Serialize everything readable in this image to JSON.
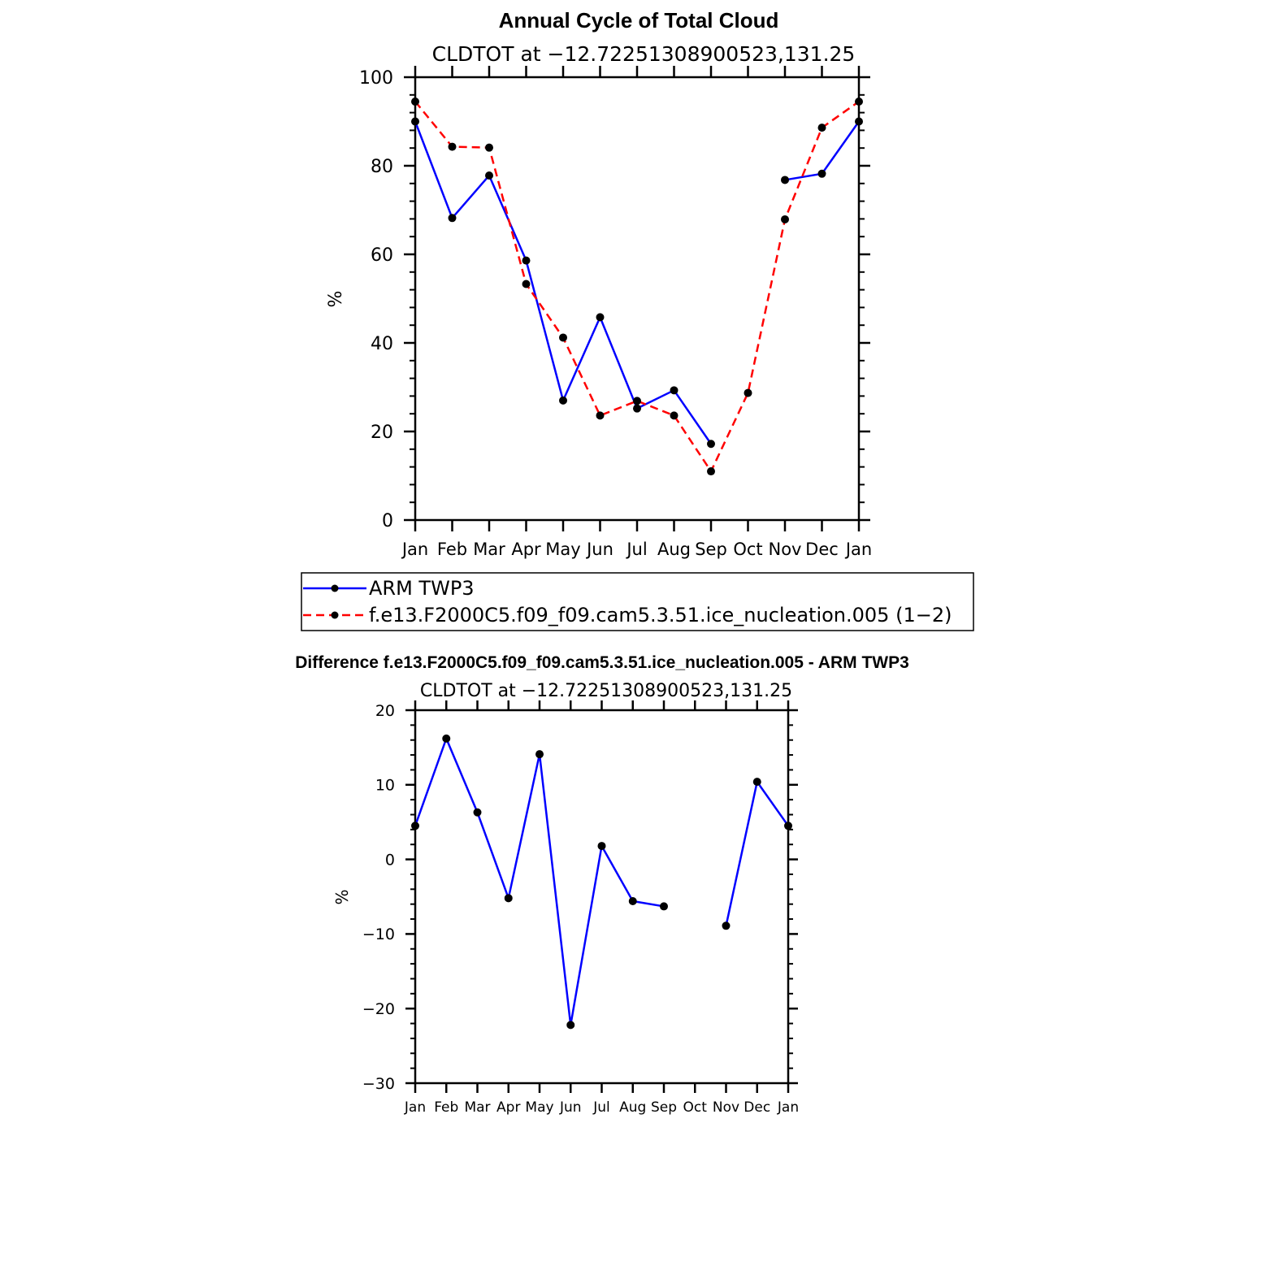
{
  "chart_data": [
    {
      "type": "line",
      "title": "Annual Cycle of Total Cloud",
      "subtitle": "CLDTOT at −12.72251308900523,131.25",
      "ylabel": "%",
      "categories": [
        "Jan",
        "Feb",
        "Mar",
        "Apr",
        "May",
        "Jun",
        "Jul",
        "Aug",
        "Sep",
        "Oct",
        "Nov",
        "Dec",
        "Jan"
      ],
      "ylim": [
        0,
        100
      ],
      "yticks": [
        0,
        20,
        40,
        60,
        80,
        100
      ],
      "ytick_labels": [
        "0",
        "20",
        "40",
        "60",
        "80",
        "100"
      ],
      "series": [
        {
          "name": "ARM TWP3",
          "color": "#0000ff",
          "dash": "solid",
          "values": [
            90.0,
            68.2,
            77.8,
            58.6,
            27.0,
            45.8,
            25.2,
            29.3,
            17.2,
            null,
            76.8,
            78.2,
            90.0
          ]
        },
        {
          "name": "f.e13.F2000C5.f09_f09.cam5.3.51.ice_nucleation.005 (1−2)",
          "color": "#ff0000",
          "dash": "dashed",
          "values": [
            94.5,
            84.3,
            84.1,
            53.3,
            41.2,
            23.6,
            26.9,
            23.6,
            11.0,
            28.7,
            67.9,
            88.6,
            94.5
          ]
        }
      ],
      "legend_labels": [
        "ARM TWP3",
        "f.e13.F2000C5.f09_f09.cam5.3.51.ice_nucleation.005 (1−2)"
      ],
      "legend_position": "below"
    },
    {
      "type": "line",
      "title": "Difference f.e13.F2000C5.f09_f09.cam5.3.51.ice_nucleation.005 - ARM TWP3",
      "subtitle": "CLDTOT at −12.72251308900523,131.25",
      "ylabel": "%",
      "categories": [
        "Jan",
        "Feb",
        "Mar",
        "Apr",
        "May",
        "Jun",
        "Jul",
        "Aug",
        "Sep",
        "Oct",
        "Nov",
        "Dec",
        "Jan"
      ],
      "ylim": [
        -30,
        20
      ],
      "yticks": [
        -30,
        -20,
        -10,
        0,
        10,
        20
      ],
      "ytick_labels": [
        "−30",
        "−20",
        "−10",
        "0",
        "10",
        "20"
      ],
      "series": [
        {
          "name": "Difference",
          "color": "#0000ff",
          "dash": "solid",
          "values": [
            4.5,
            16.2,
            6.3,
            -5.2,
            14.1,
            -22.2,
            1.8,
            -5.6,
            -6.3,
            null,
            -8.9,
            10.4,
            4.5
          ]
        }
      ]
    }
  ]
}
